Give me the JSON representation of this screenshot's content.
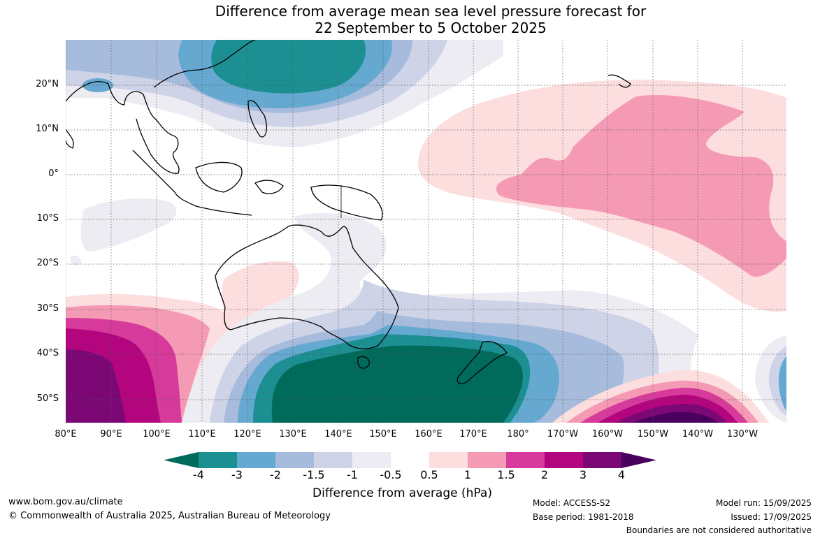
{
  "title": {
    "line1": "Difference from average mean sea level pressure forecast for",
    "line2": "22 September to 5 October 2025"
  },
  "map": {
    "lat_labels": [
      "20°N",
      "10°N",
      "0°",
      "10°S",
      "20°S",
      "30°S",
      "40°S",
      "50°S"
    ],
    "lon_labels": [
      "80°E",
      "90°E",
      "100°E",
      "110°E",
      "120°E",
      "130°E",
      "140°E",
      "150°E",
      "160°E",
      "170°E",
      "180°",
      "170°W",
      "160°W",
      "150°W",
      "140°W",
      "130°W"
    ],
    "grid": true
  },
  "colorbar": {
    "ticks": [
      "-4",
      "-3",
      "-2",
      "-1.5",
      "-1",
      "-0.5",
      "0.5",
      "1",
      "1.5",
      "2",
      "3",
      "4"
    ],
    "colors": [
      "#006b5b",
      "#1b8f92",
      "#65a9d0",
      "#a7bcdc",
      "#ced3e8",
      "#eeecf3",
      "#ffffff",
      "#fcdedf",
      "#f59ab5",
      "#d63a9b",
      "#b2057e",
      "#7c0876",
      "#4a005f"
    ],
    "label": "Difference from average (hPa)"
  },
  "footer": {
    "website": "www.bom.gov.au/climate",
    "copyright": "© Commonwealth of Australia 2025, Australian Bureau of Meteorology",
    "model": "Model: ACCESS-S2",
    "base_period": "Base period: 1981-2018",
    "model_run": "Model run: 15/09/2025",
    "issued": "Issued: 17/09/2025",
    "disclaimer": "Boundaries are not considered authoritative"
  }
}
